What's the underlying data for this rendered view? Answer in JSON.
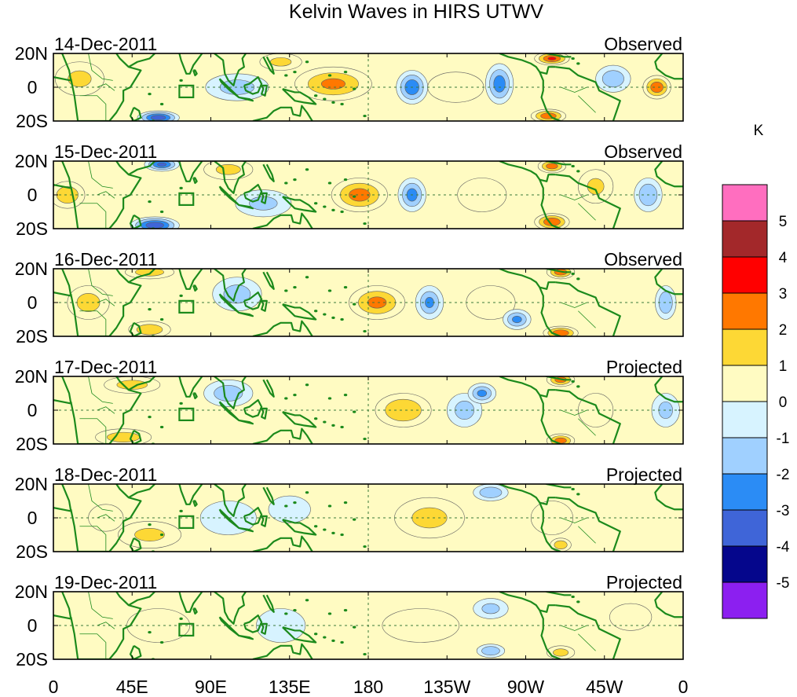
{
  "chart_data": {
    "type": "heatmap",
    "title": "Kelvin Waves in HIRS UTWV",
    "xlabel": "",
    "ylabel": "",
    "xlim": [
      0,
      360
    ],
    "ylim": [
      -20,
      20
    ],
    "x_ticks": [
      "0",
      "45E",
      "90E",
      "135E",
      "180",
      "135W",
      "90W",
      "45W",
      "0"
    ],
    "y_ticks": [
      "20N",
      "0",
      "20S"
    ],
    "units": "K",
    "colorbar": {
      "levels": [
        "5",
        "4",
        "3",
        "2",
        "1",
        "0",
        "-1",
        "-2",
        "-3",
        "-4",
        "-5"
      ],
      "colors": [
        "#ff6ebf",
        "#a3282a",
        "#ff0000",
        "#ff7800",
        "#fdd835",
        "#fffbc2",
        "#d7f3ff",
        "#a0d0ff",
        "#2b8cf5",
        "#3f65d8",
        "#05068c",
        "#8c1ff0"
      ]
    },
    "panels": [
      {
        "date": "14-Dec-2011",
        "status": "Observed"
      },
      {
        "date": "15-Dec-2011",
        "status": "Observed"
      },
      {
        "date": "16-Dec-2011",
        "status": "Observed"
      },
      {
        "date": "17-Dec-2011",
        "status": "Projected"
      },
      {
        "date": "18-Dec-2011",
        "status": "Projected"
      },
      {
        "date": "19-Dec-2011",
        "status": "Projected"
      }
    ],
    "anomaly_features": [
      [
        {
          "lon": 160,
          "lat": 2,
          "dlon": 22,
          "dlat": 10,
          "value": 2.5
        },
        {
          "lon": 205,
          "lat": 0,
          "dlon": 9,
          "dlat": 10,
          "value": -3.2
        },
        {
          "lon": 230,
          "lat": 0,
          "dlon": 16,
          "dlat": 9,
          "value": 1.4
        },
        {
          "lon": 255,
          "lat": 2,
          "dlon": 8,
          "dlat": 12,
          "value": -3.0
        },
        {
          "lon": 285,
          "lat": 17,
          "dlon": 10,
          "dlat": 4,
          "value": 3.5
        },
        {
          "lon": 283,
          "lat": -17,
          "dlon": 10,
          "dlat": 4,
          "value": 3.2
        },
        {
          "lon": 345,
          "lat": 0,
          "dlon": 8,
          "dlat": 7,
          "value": 3.2
        },
        {
          "lon": 320,
          "lat": 5,
          "dlon": 10,
          "dlat": 8,
          "value": -2.2
        },
        {
          "lon": 60,
          "lat": -18,
          "dlon": 12,
          "dlat": 4,
          "value": -4.2
        },
        {
          "lon": 105,
          "lat": 0,
          "dlon": 18,
          "dlat": 8,
          "value": -1.8
        },
        {
          "lon": 15,
          "lat": 5,
          "dlon": 14,
          "dlat": 10,
          "value": 1.5
        },
        {
          "lon": 130,
          "lat": 15,
          "dlon": 12,
          "dlat": 5,
          "value": 1.6
        }
      ],
      [
        {
          "lon": 175,
          "lat": 0,
          "dlon": 16,
          "dlat": 10,
          "value": 2.8
        },
        {
          "lon": 205,
          "lat": 0,
          "dlon": 8,
          "dlat": 10,
          "value": -2.8
        },
        {
          "lon": 245,
          "lat": 0,
          "dlon": 14,
          "dlat": 10,
          "value": 1.3
        },
        {
          "lon": 285,
          "lat": -16,
          "dlon": 10,
          "dlat": 5,
          "value": 3.4
        },
        {
          "lon": 285,
          "lat": 17,
          "dlon": 8,
          "dlat": 4,
          "value": 3.0
        },
        {
          "lon": 340,
          "lat": 0,
          "dlon": 8,
          "dlat": 10,
          "value": -2.4
        },
        {
          "lon": 58,
          "lat": -18,
          "dlon": 14,
          "dlat": 5,
          "value": -4.3
        },
        {
          "lon": 62,
          "lat": 18,
          "dlon": 10,
          "dlat": 4,
          "value": -3.6
        },
        {
          "lon": 8,
          "lat": 0,
          "dlon": 10,
          "dlat": 8,
          "value": 2.2
        },
        {
          "lon": 100,
          "lat": 15,
          "dlon": 14,
          "dlat": 6,
          "value": 1.6
        },
        {
          "lon": 120,
          "lat": -5,
          "dlon": 16,
          "dlat": 8,
          "value": -1.6
        },
        {
          "lon": 310,
          "lat": 5,
          "dlon": 10,
          "dlat": 10,
          "value": 1.5
        }
      ],
      [
        {
          "lon": 185,
          "lat": 0,
          "dlon": 16,
          "dlat": 10,
          "value": 2.6
        },
        {
          "lon": 215,
          "lat": 0,
          "dlon": 8,
          "dlat": 10,
          "value": -2.5
        },
        {
          "lon": 250,
          "lat": 0,
          "dlon": 14,
          "dlat": 10,
          "value": 1.2
        },
        {
          "lon": 265,
          "lat": -10,
          "dlon": 8,
          "dlat": 6,
          "value": -2.6
        },
        {
          "lon": 290,
          "lat": 18,
          "dlon": 8,
          "dlat": 4,
          "value": 3.2
        },
        {
          "lon": 290,
          "lat": -18,
          "dlon": 10,
          "dlat": 4,
          "value": 3.3
        },
        {
          "lon": 350,
          "lat": 0,
          "dlon": 6,
          "dlat": 10,
          "value": -2.4
        },
        {
          "lon": 55,
          "lat": 18,
          "dlon": 14,
          "dlat": 4,
          "value": 2.0
        },
        {
          "lon": 55,
          "lat": -16,
          "dlon": 12,
          "dlat": 5,
          "value": 2.2
        },
        {
          "lon": 20,
          "lat": 0,
          "dlon": 12,
          "dlat": 10,
          "value": 1.8
        },
        {
          "lon": 105,
          "lat": 5,
          "dlon": 14,
          "dlat": 10,
          "value": -1.8
        }
      ],
      [
        {
          "lon": 200,
          "lat": 0,
          "dlon": 16,
          "dlat": 10,
          "value": 2.4
        },
        {
          "lon": 235,
          "lat": 0,
          "dlon": 10,
          "dlat": 10,
          "value": -1.8
        },
        {
          "lon": 245,
          "lat": 10,
          "dlon": 8,
          "dlat": 6,
          "value": -2.6
        },
        {
          "lon": 290,
          "lat": 18,
          "dlon": 8,
          "dlat": 4,
          "value": 3.0
        },
        {
          "lon": 290,
          "lat": -18,
          "dlon": 8,
          "dlat": 4,
          "value": 3.0
        },
        {
          "lon": 40,
          "lat": -16,
          "dlon": 16,
          "dlat": 5,
          "value": 2.0
        },
        {
          "lon": 45,
          "lat": 15,
          "dlon": 16,
          "dlat": 5,
          "value": 1.8
        },
        {
          "lon": 100,
          "lat": 10,
          "dlon": 14,
          "dlat": 8,
          "value": -2.0
        },
        {
          "lon": 350,
          "lat": 0,
          "dlon": 8,
          "dlat": 10,
          "value": -1.6
        },
        {
          "lon": 310,
          "lat": 0,
          "dlon": 10,
          "dlat": 10,
          "value": 1.2
        }
      ],
      [
        {
          "lon": 215,
          "lat": 0,
          "dlon": 20,
          "dlat": 12,
          "value": 1.6
        },
        {
          "lon": 250,
          "lat": 15,
          "dlon": 10,
          "dlat": 5,
          "value": -2.3
        },
        {
          "lon": 285,
          "lat": 0,
          "dlon": 12,
          "dlat": 10,
          "value": 1.3
        },
        {
          "lon": 290,
          "lat": -16,
          "dlon": 6,
          "dlat": 4,
          "value": 2.2
        },
        {
          "lon": 55,
          "lat": -10,
          "dlon": 18,
          "dlat": 8,
          "value": 1.5
        },
        {
          "lon": 100,
          "lat": 0,
          "dlon": 16,
          "dlat": 10,
          "value": -1.4
        },
        {
          "lon": 135,
          "lat": 5,
          "dlon": 12,
          "dlat": 8,
          "value": -1.2
        },
        {
          "lon": 30,
          "lat": 0,
          "dlon": 10,
          "dlat": 8,
          "value": 1.4
        }
      ],
      [
        {
          "lon": 210,
          "lat": 0,
          "dlon": 22,
          "dlat": 10,
          "value": 1.3
        },
        {
          "lon": 250,
          "lat": 10,
          "dlon": 10,
          "dlat": 6,
          "value": -1.6
        },
        {
          "lon": 250,
          "lat": -15,
          "dlon": 8,
          "dlat": 4,
          "value": -2.4
        },
        {
          "lon": 290,
          "lat": -16,
          "dlon": 8,
          "dlat": 4,
          "value": 1.8
        },
        {
          "lon": 60,
          "lat": 0,
          "dlon": 18,
          "dlat": 10,
          "value": 1.2
        },
        {
          "lon": 130,
          "lat": 0,
          "dlon": 14,
          "dlat": 10,
          "value": -1.2
        },
        {
          "lon": 330,
          "lat": 5,
          "dlon": 12,
          "dlat": 8,
          "value": 1.1
        }
      ]
    ]
  }
}
